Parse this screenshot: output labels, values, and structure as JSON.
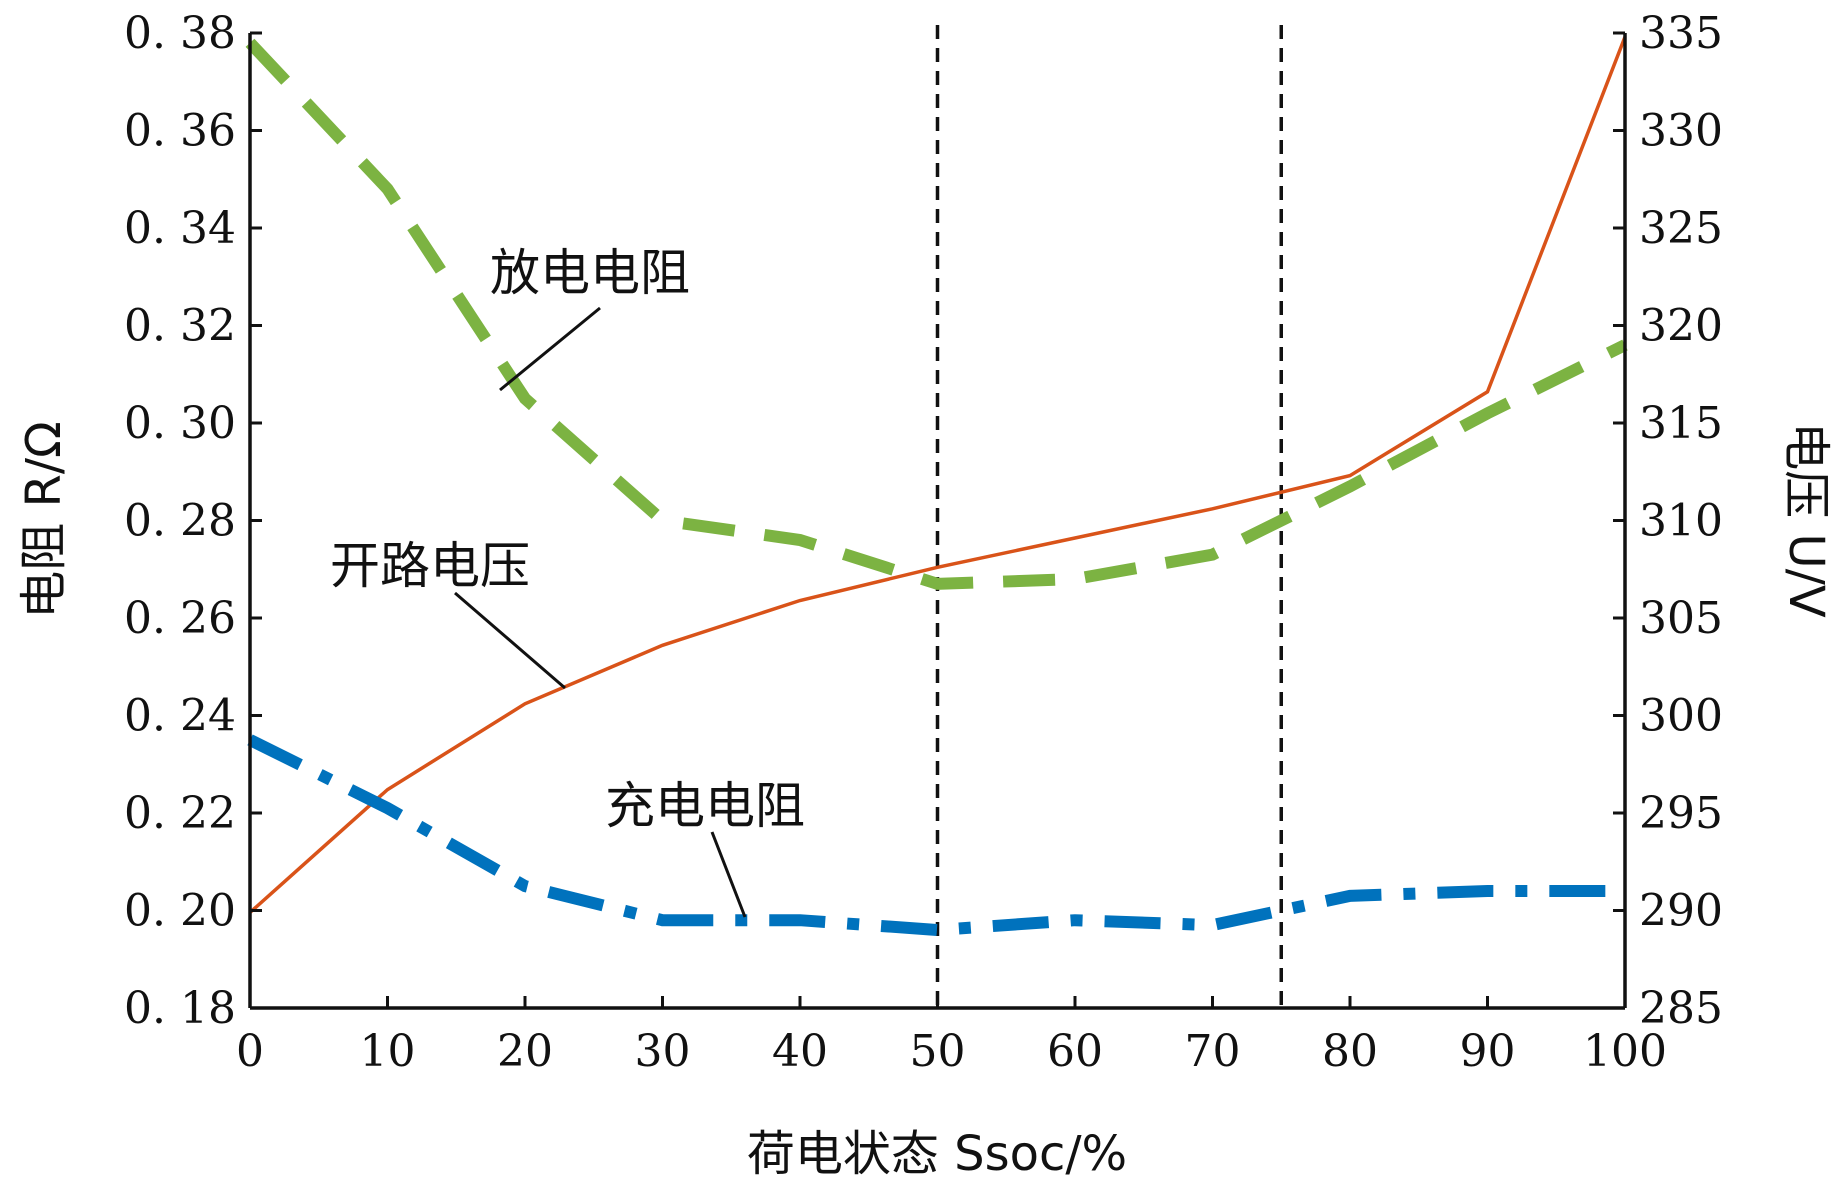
{
  "chart_data": {
    "type": "line",
    "xlabel": "荷电状态 Ssoc/%",
    "ylabel_left": "电阻 R/Ω",
    "ylabel_right": "电压 U/V",
    "xlim": [
      0,
      100
    ],
    "ylim_left": [
      0.18,
      0.38
    ],
    "ylim_right": [
      285,
      335
    ],
    "x_ticks": [
      "0",
      "10",
      "20",
      "30",
      "40",
      "50",
      "60",
      "70",
      "80",
      "90",
      "100"
    ],
    "y_left_ticks": [
      "0.18",
      "0.20",
      "0.22",
      "0.24",
      "0.26",
      "0.28",
      "0.30",
      "0.32",
      "0.34",
      "0.36",
      "0.38"
    ],
    "y_right_ticks": [
      "285",
      "290",
      "295",
      "300",
      "305",
      "310",
      "315",
      "320",
      "325",
      "330",
      "335"
    ],
    "vlines": [
      50,
      75
    ],
    "grid": false,
    "series": [
      {
        "name": "开路电压",
        "axis": "right",
        "color": "#d95319",
        "style": "solid",
        "x": [
          0,
          10,
          20,
          30,
          40,
          50,
          60,
          70,
          80,
          90,
          100
        ],
        "y": [
          289.9,
          296.2,
          300.6,
          303.6,
          305.9,
          307.6,
          309.1,
          310.6,
          312.3,
          316.6,
          334.8
        ]
      },
      {
        "name": "放电电阻",
        "axis": "left",
        "color": "#7cb342",
        "style": "dashed",
        "x": [
          0,
          10,
          20,
          30,
          40,
          50,
          60,
          70,
          80,
          90,
          100
        ],
        "y": [
          0.378,
          0.348,
          0.305,
          0.28,
          0.276,
          0.267,
          0.268,
          0.273,
          0.287,
          0.302,
          0.316
        ]
      },
      {
        "name": "充电电阻",
        "axis": "left",
        "color": "#0072bd",
        "style": "dashdot",
        "x": [
          0,
          10,
          20,
          30,
          40,
          50,
          60,
          70,
          80,
          90,
          100
        ],
        "y": [
          0.235,
          0.221,
          0.205,
          0.198,
          0.198,
          0.196,
          0.198,
          0.197,
          0.203,
          0.204,
          0.204
        ]
      }
    ],
    "annotations": [
      {
        "text": "放电电阻",
        "series": "放电电阻"
      },
      {
        "text": "开路电压",
        "series": "开路电压"
      },
      {
        "text": "充电电阻",
        "series": "充电电阻"
      }
    ]
  }
}
